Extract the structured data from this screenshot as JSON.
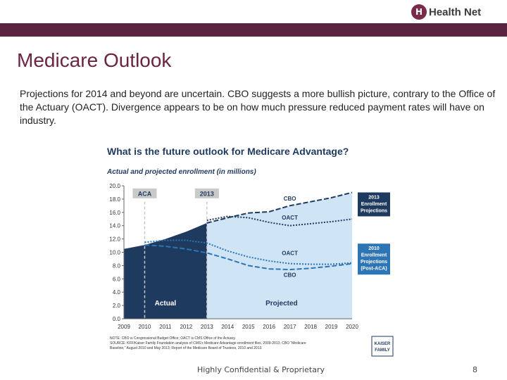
{
  "header": {
    "logo_mark": "H",
    "logo_text": "Health Net",
    "accent_color": "#5a2440"
  },
  "slide": {
    "title": "Medicare Outlook",
    "body": "Projections for 2014 and beyond are uncertain.  CBO suggests a more bullish picture, contrary to the Office of the Actuary (OACT).  Divergence appears to be on how much pressure reduced payment rates will have on industry."
  },
  "footer": {
    "confidential": "Highly Confidential & Proprietary",
    "page_number": "8"
  },
  "chart_data": {
    "type": "line",
    "title": "What is the future outlook for Medicare Advantage?",
    "subtitle": "Actual and projected enrollment (in millions)",
    "x": [
      2009,
      2010,
      2011,
      2012,
      2013,
      2014,
      2015,
      2016,
      2017,
      2018,
      2019,
      2020
    ],
    "x_tick_labels": [
      "2009",
      "2010",
      "2011",
      "2012",
      "2013",
      "2014",
      "2015",
      "2016",
      "2017",
      "2018",
      "2019",
      "2020"
    ],
    "y_tick_labels": [
      "0.0",
      "2.0",
      "4.0",
      "6.0",
      "8.0",
      "10.0",
      "12.0",
      "14.0",
      "16.0",
      "18.0",
      "20.0"
    ],
    "ylim": [
      0,
      20
    ],
    "series": [
      {
        "name": "Actual",
        "x": [
          2009,
          2010,
          2011,
          2012,
          2013
        ],
        "values": [
          10.5,
          11.1,
          12.0,
          13.1,
          14.4
        ],
        "color": "#1f3a5f"
      },
      {
        "name": "CBO (2013 projections)",
        "x": [
          2013,
          2014,
          2015,
          2016,
          2017,
          2018,
          2019,
          2020
        ],
        "values": [
          14.4,
          15.2,
          15.9,
          16.1,
          17.0,
          17.6,
          18.2,
          19.0
        ],
        "color": "#1f3a5f"
      },
      {
        "name": "OACT (2013 projections)",
        "x": [
          2013,
          2014,
          2015,
          2016,
          2017,
          2018,
          2019,
          2020
        ],
        "values": [
          14.8,
          15.4,
          15.2,
          14.5,
          14.0,
          14.3,
          14.6,
          15.0
        ],
        "color": "#1f3a5f"
      },
      {
        "name": "OACT (2010 projections)",
        "x": [
          2010,
          2011,
          2012,
          2013,
          2014,
          2015,
          2016,
          2017,
          2018,
          2019,
          2020
        ],
        "values": [
          11.5,
          11.8,
          11.8,
          11.4,
          10.2,
          9.3,
          8.7,
          8.3,
          8.2,
          8.2,
          8.4
        ],
        "color": "#2e75b6"
      },
      {
        "name": "CBO (2010 projections)",
        "x": [
          2010,
          2011,
          2012,
          2013,
          2014,
          2015,
          2016,
          2017,
          2018,
          2019,
          2020
        ],
        "values": [
          11.1,
          10.9,
          10.5,
          9.9,
          9.0,
          8.0,
          7.5,
          7.4,
          7.6,
          7.9,
          8.3
        ],
        "color": "#2e75b6"
      }
    ],
    "annotations": {
      "aca": "ACA",
      "year2013": "2013",
      "cbo_top": "CBO",
      "oact_top": "OACT",
      "oact_low": "OACT",
      "cbo_low": "CBO",
      "actual": "Actual",
      "projected": "Projected"
    },
    "legend": {
      "box2013": [
        "2013",
        "Enrollment",
        "Projections"
      ],
      "box2010": [
        "2010",
        "Enrollment",
        "Projections",
        "(Post-ACA)"
      ]
    },
    "source_notes": [
      "NOTE: CBO is Congressional Budget Office; OACT is CMS Office of the Actuary.",
      "SOURCE: KFF/Kaiser Family Foundation analysis of CMS's Medicare Advantage enrollment files, 2009-2013; CBO \"Medicare",
      "Baseline,\" August 2010 and May 2013; Report of the Medicare Board of Trustees, 2010 and 2013."
    ],
    "kff_logo": [
      "KAISER",
      "FAMILY"
    ],
    "grid": false
  }
}
